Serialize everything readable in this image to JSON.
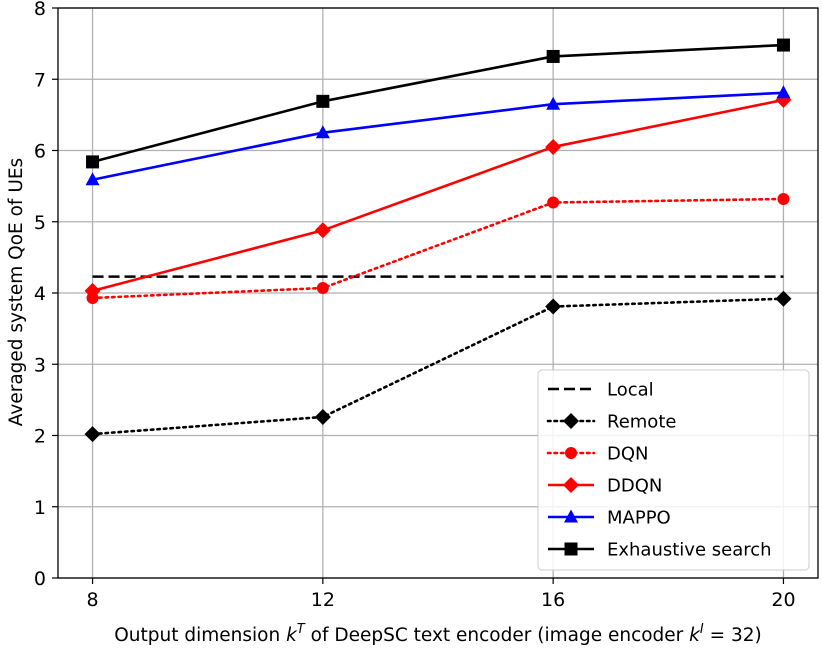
{
  "chart_data": {
    "type": "line",
    "title": "",
    "xlabel": {
      "prefix": "Output dimension ",
      "var1_base": "k",
      "var1_sup": "T",
      "middle": " of DeepSC text encoder (image encoder ",
      "var2_base": "k",
      "var2_sup": "I",
      "suffix": " = 32)"
    },
    "ylabel": "Averaged system QoE of UEs",
    "x": [
      8,
      12,
      16,
      20
    ],
    "xticks": [
      "8",
      "12",
      "16",
      "20"
    ],
    "xlim": [
      7.4,
      20.6
    ],
    "ylim": [
      0,
      8
    ],
    "yticks": [
      "0",
      "1",
      "2",
      "3",
      "4",
      "5",
      "6",
      "7",
      "8"
    ],
    "grid": true,
    "legend_position": "bottom-right",
    "series": [
      {
        "name": "Local",
        "values": [
          4.23,
          4.23,
          4.23,
          4.23
        ],
        "color": "#000000",
        "dash": "dashed",
        "marker": "none"
      },
      {
        "name": "Remote",
        "values": [
          2.02,
          2.26,
          3.81,
          3.92
        ],
        "color": "#000000",
        "dash": "dotted",
        "marker": "diamond"
      },
      {
        "name": "DQN",
        "values": [
          3.93,
          4.07,
          5.27,
          5.32
        ],
        "color": "#ff0000",
        "dash": "dotted",
        "marker": "circle"
      },
      {
        "name": "DDQN",
        "values": [
          4.03,
          4.88,
          6.05,
          6.71
        ],
        "color": "#ff0000",
        "dash": "solid",
        "marker": "diamond"
      },
      {
        "name": "MAPPO",
        "values": [
          5.59,
          6.25,
          6.65,
          6.81
        ],
        "color": "#0000ff",
        "dash": "solid",
        "marker": "triangle"
      },
      {
        "name": "Exhaustive search",
        "values": [
          5.84,
          6.69,
          7.32,
          7.48
        ],
        "color": "#000000",
        "dash": "solid",
        "marker": "square"
      }
    ]
  }
}
